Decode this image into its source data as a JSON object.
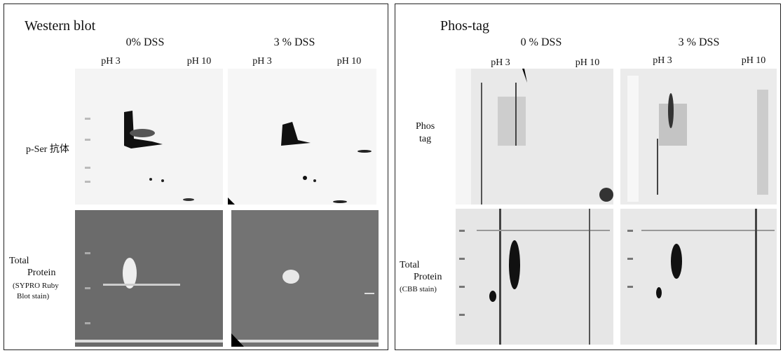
{
  "left_panel": {
    "title": "Western blot",
    "conditions": [
      "0% DSS",
      "3 % DSS"
    ],
    "ph_labels": [
      "pH 3",
      "pH 10",
      "pH 3",
      "pH 10"
    ],
    "row_labels": [
      [
        "p-Ser 抗体"
      ],
      [
        "Total",
        "Protein",
        "(SYPRO Ruby",
        "Blot stain)"
      ]
    ]
  },
  "right_panel": {
    "title": "Phos-tag",
    "conditions": [
      "0 % DSS",
      "3 % DSS"
    ],
    "ph_labels": [
      "pH 3",
      "pH 10",
      "pH 3",
      "pH 10"
    ],
    "row_labels": [
      [
        "Phos",
        "tag"
      ],
      [
        "Total",
        "Protein",
        "(CBB stain)"
      ]
    ]
  }
}
